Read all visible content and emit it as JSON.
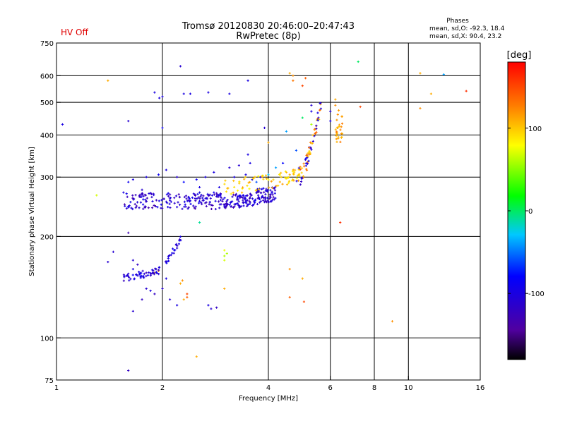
{
  "chart_data": {
    "type": "scatter",
    "title": "Tromsø 20120830 20:46:00–20:47:43",
    "subtitle": "RwPretec (8p)",
    "status": "HV Off",
    "xlabel": "Frequency [MHz]",
    "ylabel": "Stationary phase Virtual Height [km]",
    "xscale": "log",
    "yscale": "log",
    "xlim": [
      1,
      16
    ],
    "ylim": [
      75,
      750
    ],
    "xticks": [
      1,
      2,
      4,
      6,
      8,
      10,
      16
    ],
    "xtick_labels": [
      "1",
      "2",
      "4",
      "6",
      "8",
      "10",
      "16"
    ],
    "xgrid": [
      2,
      4,
      6,
      8,
      10
    ],
    "yticks": [
      75,
      100,
      200,
      300,
      400,
      500,
      600,
      750
    ],
    "ytick_labels": [
      "75",
      "100",
      "200",
      "300",
      "400",
      "500",
      "600",
      "750"
    ],
    "ygrid": [
      100,
      200,
      300,
      400,
      500,
      600
    ],
    "stats": {
      "heading": "Phases",
      "line_o": "mean, sd,O: -92.3, 18.4",
      "line_x": "mean, sd,X:  90.4, 23.2"
    },
    "colorbar": {
      "label": "[deg]",
      "min": -180,
      "max": 180,
      "ticks": [
        100,
        0,
        -100
      ],
      "tick_labels": [
        "100",
        "0",
        "-100"
      ]
    },
    "points": [
      [
        1.04,
        430,
        -100
      ],
      [
        1.3,
        265,
        70
      ],
      [
        1.4,
        580,
        110
      ],
      [
        1.4,
        168,
        -110
      ],
      [
        1.45,
        180,
        -110
      ],
      [
        1.6,
        80,
        -120
      ],
      [
        1.6,
        440,
        -110
      ],
      [
        1.6,
        205,
        -130
      ],
      [
        1.65,
        120,
        -110
      ],
      [
        1.9,
        535,
        -100
      ],
      [
        1.96,
        515,
        -100
      ],
      [
        2.0,
        420,
        -90
      ],
      [
        2.0,
        520,
        -100
      ],
      [
        2.25,
        640,
        -110
      ],
      [
        2.3,
        530,
        -100
      ],
      [
        2.4,
        530,
        -100
      ],
      [
        2.3,
        130,
        110
      ],
      [
        2.35,
        132,
        140
      ],
      [
        2.55,
        220,
        -10
      ],
      [
        2.55,
        270,
        30
      ],
      [
        2.5,
        88,
        110
      ],
      [
        2.7,
        535,
        -100
      ],
      [
        3.0,
        175,
        60
      ],
      [
        3.0,
        170,
        70
      ],
      [
        3.0,
        182,
        75
      ],
      [
        3.05,
        178,
        60
      ],
      [
        3.0,
        140,
        110
      ],
      [
        3.1,
        530,
        -100
      ],
      [
        3.5,
        580,
        -100
      ],
      [
        3.5,
        350,
        -100
      ],
      [
        3.55,
        330,
        -100
      ],
      [
        3.9,
        420,
        -110
      ],
      [
        4.0,
        380,
        110
      ],
      [
        4.6,
        610,
        110
      ],
      [
        4.7,
        600,
        120
      ],
      [
        4.6,
        160,
        120
      ],
      [
        4.6,
        132,
        140
      ],
      [
        4.7,
        580,
        130
      ],
      [
        4.5,
        410,
        -40
      ],
      [
        4.8,
        360,
        -60
      ],
      [
        5.0,
        150,
        110
      ],
      [
        5.05,
        128,
        150
      ],
      [
        5.0,
        450,
        0
      ],
      [
        5.0,
        560,
        150
      ],
      [
        5.1,
        590,
        140
      ],
      [
        5.3,
        430,
        60
      ],
      [
        5.3,
        490,
        -110
      ],
      [
        5.3,
        470,
        -100
      ],
      [
        6.0,
        470,
        -110
      ],
      [
        6.0,
        440,
        -100
      ],
      [
        6.2,
        510,
        110
      ],
      [
        6.2,
        490,
        120
      ],
      [
        6.3,
        460,
        120
      ],
      [
        6.3,
        420,
        110
      ],
      [
        6.4,
        220,
        160
      ],
      [
        7.2,
        660,
        0
      ],
      [
        7.3,
        485,
        150
      ],
      [
        8.6,
        75,
        150
      ],
      [
        9.0,
        112,
        120
      ],
      [
        10.8,
        610,
        110
      ],
      [
        11.6,
        530,
        110
      ],
      [
        10.8,
        480,
        120
      ],
      [
        12.6,
        605,
        -40
      ],
      [
        14.6,
        540,
        160
      ],
      [
        1.55,
        270,
        -100
      ],
      [
        1.6,
        290,
        -90
      ],
      [
        1.65,
        295,
        -100
      ],
      [
        1.75,
        275,
        -110
      ],
      [
        1.8,
        300,
        -100
      ],
      [
        1.95,
        305,
        -90
      ],
      [
        2.05,
        315,
        -100
      ],
      [
        2.2,
        300,
        -110
      ],
      [
        2.3,
        290,
        -80
      ],
      [
        2.5,
        295,
        -90
      ],
      [
        2.65,
        300,
        -100
      ],
      [
        2.8,
        310,
        -100
      ],
      [
        2.9,
        280,
        -100
      ],
      [
        3.1,
        320,
        -110
      ],
      [
        3.2,
        300,
        -100
      ],
      [
        3.3,
        325,
        -110
      ],
      [
        3.45,
        305,
        -100
      ],
      [
        3.6,
        295,
        -100
      ],
      [
        3.7,
        290,
        -60
      ],
      [
        3.8,
        300,
        -100
      ],
      [
        4.0,
        305,
        -30
      ],
      [
        4.2,
        320,
        -40
      ],
      [
        4.4,
        330,
        -80
      ],
      [
        4.5,
        310,
        110
      ],
      [
        4.6,
        305,
        110
      ],
      [
        2.55,
        270,
        -100
      ],
      [
        2.55,
        280,
        -100
      ],
      [
        2.6,
        260,
        -100
      ],
      [
        2.7,
        265,
        -110
      ],
      [
        2.8,
        270,
        -90
      ],
      [
        1.6,
        155,
        -110
      ],
      [
        1.65,
        160,
        -100
      ],
      [
        1.65,
        170,
        -110
      ],
      [
        1.7,
        165,
        -120
      ],
      [
        1.75,
        130,
        -120
      ],
      [
        1.8,
        140,
        -110
      ],
      [
        1.85,
        138,
        -100
      ],
      [
        1.9,
        135,
        -120
      ],
      [
        2.0,
        140,
        -110
      ],
      [
        2.05,
        150,
        -100
      ],
      [
        2.1,
        130,
        -110
      ],
      [
        2.2,
        125,
        -100
      ],
      [
        2.25,
        145,
        110
      ],
      [
        2.28,
        148,
        120
      ],
      [
        2.35,
        135,
        150
      ],
      [
        2.7,
        125,
        -100
      ],
      [
        2.75,
        122,
        -110
      ],
      [
        2.85,
        123,
        -120
      ],
      [
        1.95,
        158,
        120
      ],
      [
        1.9,
        156,
        110
      ]
    ]
  }
}
